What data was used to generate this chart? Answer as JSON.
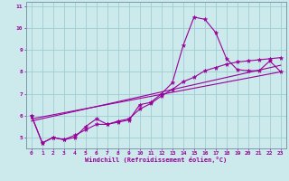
{
  "background_color": "#cce9ec",
  "grid_color": "#9ecdd4",
  "line_color": "#990099",
  "xlabel": "Windchill (Refroidissement éolien,°C)",
  "xlabel_color": "#990099",
  "tick_color": "#990099",
  "spine_color": "#7799aa",
  "xlim": [
    -0.5,
    23.5
  ],
  "ylim": [
    4.5,
    11.2
  ],
  "yticks": [
    5,
    6,
    7,
    8,
    9,
    10,
    11
  ],
  "xticks": [
    0,
    1,
    2,
    3,
    4,
    5,
    6,
    7,
    8,
    9,
    10,
    11,
    12,
    13,
    14,
    15,
    16,
    17,
    18,
    19,
    20,
    21,
    22,
    23
  ],
  "series1_x": [
    0,
    1,
    2,
    3,
    4,
    5,
    6,
    7,
    8,
    9,
    10,
    11,
    12,
    13,
    14,
    15,
    16,
    17,
    18,
    19,
    20,
    21,
    22,
    23
  ],
  "series1_y": [
    6.0,
    4.75,
    5.0,
    4.9,
    5.0,
    5.5,
    5.85,
    5.6,
    5.7,
    5.8,
    6.5,
    6.6,
    7.0,
    7.5,
    9.2,
    10.5,
    10.4,
    9.8,
    8.6,
    8.1,
    8.05,
    8.05,
    8.5,
    8.0
  ],
  "series2_x": [
    0,
    1,
    2,
    3,
    4,
    5,
    6,
    7,
    8,
    9,
    10,
    11,
    12,
    13,
    14,
    15,
    16,
    17,
    18,
    19,
    20,
    21,
    22,
    23
  ],
  "series2_y": [
    6.0,
    4.75,
    5.0,
    4.9,
    5.1,
    5.35,
    5.6,
    5.6,
    5.75,
    5.85,
    6.3,
    6.55,
    6.9,
    7.2,
    7.55,
    7.75,
    8.05,
    8.2,
    8.35,
    8.45,
    8.5,
    8.55,
    8.6,
    8.65
  ],
  "series3_x": [
    0,
    23
  ],
  "series3_y": [
    5.75,
    8.3
  ],
  "series4_x": [
    0,
    23
  ],
  "series4_y": [
    5.85,
    8.0
  ]
}
